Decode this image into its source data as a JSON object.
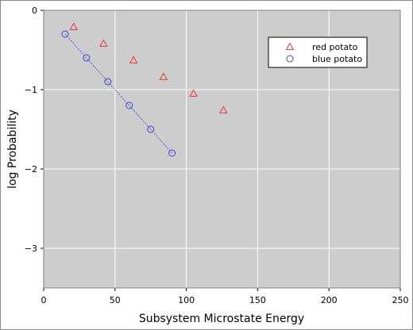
{
  "chart_data": {
    "type": "scatter",
    "title": "",
    "xlabel": "Subsystem Microstate Energy",
    "ylabel": "log Probability",
    "xlim": [
      0,
      250
    ],
    "ylim": [
      -3.5,
      0
    ],
    "xticks": [
      0,
      50,
      100,
      150,
      200,
      250
    ],
    "yticks": [
      0,
      -1,
      -2,
      -3
    ],
    "xtick_labels": [
      "0",
      "50",
      "100",
      "150",
      "200",
      "250"
    ],
    "ytick_labels": [
      "0",
      "−1",
      "−2",
      "−3"
    ],
    "grid": true,
    "legend_position": "top-right",
    "series": [
      {
        "name": "red potato",
        "marker": "triangle",
        "color": "#e8383d",
        "line": false,
        "x": [
          21,
          42,
          63,
          84,
          105,
          126
        ],
        "y": [
          -0.21,
          -0.42,
          -0.63,
          -0.84,
          -1.05,
          -1.26
        ]
      },
      {
        "name": "blue potato",
        "marker": "circle",
        "color": "#3f3fdf",
        "line": true,
        "line_style": "dotted",
        "x": [
          15,
          30,
          45,
          60,
          75,
          90
        ],
        "y": [
          -0.3,
          -0.6,
          -0.9,
          -1.2,
          -1.5,
          -1.8
        ]
      }
    ]
  },
  "colors": {
    "plot_background": "#cdcdcd",
    "grid": "#ffffff",
    "frame": "#808080"
  }
}
